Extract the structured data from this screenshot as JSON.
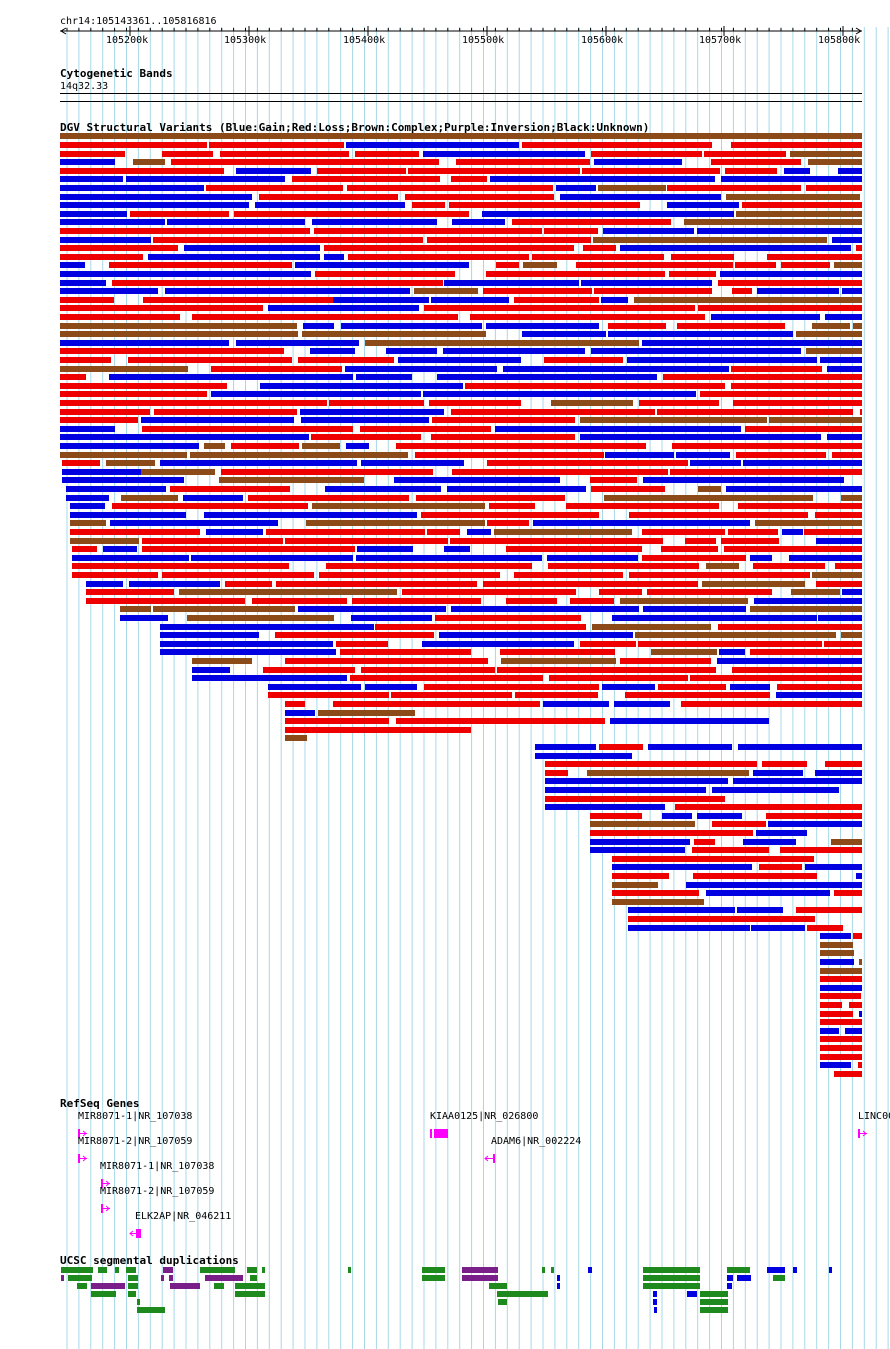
{
  "location": "chr14:105143361..105816816",
  "ruler": {
    "ticks": [
      "105200k",
      "105300k",
      "105400k",
      "105500k",
      "105600k",
      "105700k",
      "105800k"
    ]
  },
  "cytoband": {
    "title": "Cytogenetic Bands",
    "band": "14q32.33"
  },
  "dgv": {
    "title": "DGV Structural Variants (Blue:Gain;Red:Loss;Brown:Complex;Purple:Inversion;Black:Unknown)",
    "colors": {
      "gain": "#0000e0",
      "loss": "#ee0000",
      "complex": "#8b4a18",
      "inversion": "#800080",
      "unknown": "#000000"
    }
  },
  "refseq": {
    "title": "RefSeq Genes",
    "color": "#ff00ff",
    "genes": [
      {
        "label": "MIR8071-1|NR_107038",
        "strand": "+"
      },
      {
        "label": "MIR8071-2|NR_107059",
        "strand": "+"
      },
      {
        "label": "MIR8071-1|NR_107038",
        "strand": "+"
      },
      {
        "label": "MIR8071-2|NR_107059",
        "strand": "+"
      },
      {
        "label": "ELK2AP|NR_046211",
        "strand": "-"
      },
      {
        "label": "KIAA0125|NR_026800",
        "strand": "+"
      },
      {
        "label": "ADAM6|NR_002224",
        "strand": "-"
      },
      {
        "label": "LINC00",
        "strand": "+"
      }
    ]
  },
  "segdups": {
    "title": "UCSC segmental duplications",
    "colors": {
      "green": "#1e8a1e",
      "purple": "#7a1e8a",
      "blue": "#0000e0"
    }
  }
}
